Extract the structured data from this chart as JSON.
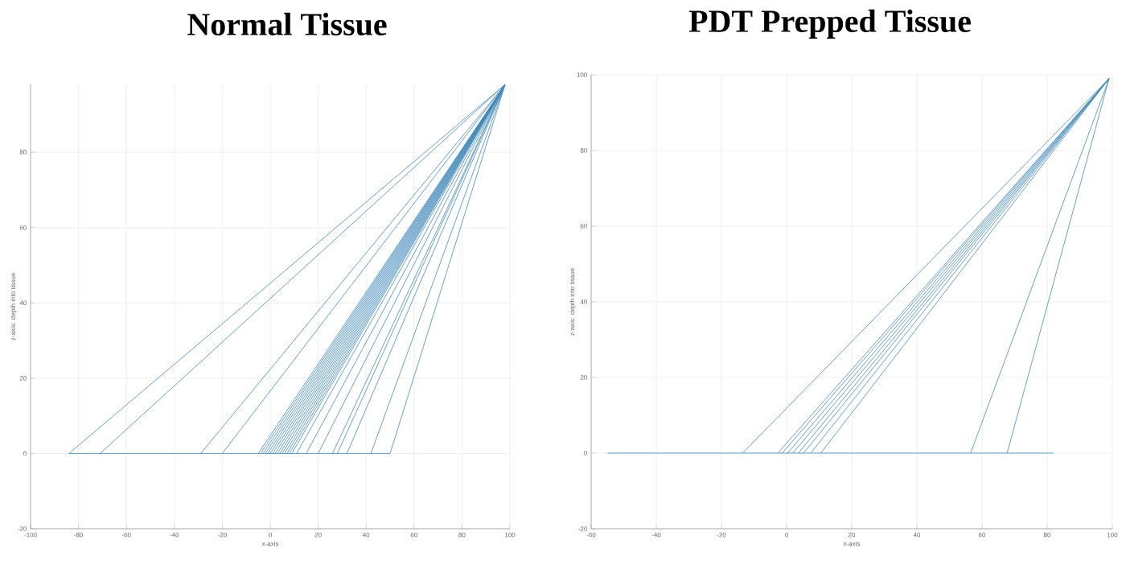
{
  "chart_data": [
    {
      "type": "line",
      "title": "Normal Tissue",
      "xlabel": "x-axis",
      "ylabel": "z-axis: depth into tissue",
      "color": "#3f88ba",
      "grid": true,
      "series": [
        {
          "x": [
            -84,
            50
          ],
          "values": [
            0,
            0
          ]
        },
        {
          "x": [
            -84,
            98
          ],
          "values": [
            0,
            98
          ]
        },
        {
          "x": [
            -71,
            98
          ],
          "values": [
            0,
            98
          ]
        },
        {
          "x": [
            -29,
            98
          ],
          "values": [
            0,
            98
          ]
        },
        {
          "x": [
            -20,
            98
          ],
          "values": [
            0,
            98
          ]
        },
        {
          "x": [
            -5,
            98
          ],
          "values": [
            0,
            98
          ]
        },
        {
          "x": [
            -4,
            98
          ],
          "values": [
            0,
            98
          ]
        },
        {
          "x": [
            -3,
            98
          ],
          "values": [
            0,
            98
          ]
        },
        {
          "x": [
            -2,
            98
          ],
          "values": [
            0,
            98
          ]
        },
        {
          "x": [
            -1,
            98
          ],
          "values": [
            0,
            98
          ]
        },
        {
          "x": [
            0,
            98
          ],
          "values": [
            0,
            98
          ]
        },
        {
          "x": [
            1,
            98
          ],
          "values": [
            0,
            98
          ]
        },
        {
          "x": [
            2,
            98
          ],
          "values": [
            0,
            98
          ]
        },
        {
          "x": [
            3,
            98
          ],
          "values": [
            0,
            98
          ]
        },
        {
          "x": [
            4,
            98
          ],
          "values": [
            0,
            98
          ]
        },
        {
          "x": [
            5,
            98
          ],
          "values": [
            0,
            98
          ]
        },
        {
          "x": [
            6,
            98
          ],
          "values": [
            0,
            98
          ]
        },
        {
          "x": [
            7,
            98
          ],
          "values": [
            0,
            98
          ]
        },
        {
          "x": [
            8,
            98
          ],
          "values": [
            0,
            98
          ]
        },
        {
          "x": [
            9,
            98
          ],
          "values": [
            0,
            98
          ]
        },
        {
          "x": [
            11,
            98
          ],
          "values": [
            0,
            98
          ]
        },
        {
          "x": [
            15,
            98
          ],
          "values": [
            0,
            98
          ]
        },
        {
          "x": [
            20,
            98
          ],
          "values": [
            0,
            98
          ]
        },
        {
          "x": [
            26,
            98
          ],
          "values": [
            0,
            98
          ]
        },
        {
          "x": [
            28,
            98
          ],
          "values": [
            0,
            98
          ]
        },
        {
          "x": [
            32,
            98
          ],
          "values": [
            0,
            98
          ]
        },
        {
          "x": [
            42,
            98
          ],
          "values": [
            0,
            98
          ]
        },
        {
          "x": [
            50,
            98
          ],
          "values": [
            0,
            98
          ]
        }
      ],
      "xlim": [
        -100,
        100
      ],
      "ylim": [
        -20,
        98
      ],
      "xticks": [
        -100,
        -80,
        -60,
        -40,
        -20,
        0,
        20,
        40,
        60,
        80,
        100
      ],
      "yticks": [
        -20,
        0,
        20,
        40,
        60,
        80
      ]
    },
    {
      "type": "line",
      "title": "PDT Prepped Tissue",
      "xlabel": "x-axis",
      "ylabel": "z-axis: depth into tissue",
      "color": "#3f88ba",
      "grid": true,
      "series": [
        {
          "x": [
            -55,
            82
          ],
          "values": [
            0,
            0
          ]
        },
        {
          "x": [
            -13.5,
            99
          ],
          "values": [
            0,
            99
          ]
        },
        {
          "x": [
            -2.7,
            99
          ],
          "values": [
            0,
            99
          ]
        },
        {
          "x": [
            -1.4,
            99
          ],
          "values": [
            0,
            99
          ]
        },
        {
          "x": [
            0.3,
            99
          ],
          "values": [
            0,
            99
          ]
        },
        {
          "x": [
            1.9,
            99
          ],
          "values": [
            0,
            99
          ]
        },
        {
          "x": [
            3.6,
            99
          ],
          "values": [
            0,
            99
          ]
        },
        {
          "x": [
            5.2,
            99
          ],
          "values": [
            0,
            99
          ]
        },
        {
          "x": [
            7.4,
            99
          ],
          "values": [
            0,
            99
          ]
        },
        {
          "x": [
            10.5,
            99
          ],
          "values": [
            0,
            99
          ]
        },
        {
          "x": [
            56.5,
            99
          ],
          "values": [
            0,
            99
          ]
        },
        {
          "x": [
            67.7,
            99
          ],
          "values": [
            0,
            99
          ]
        }
      ],
      "xlim": [
        -60,
        100
      ],
      "ylim": [
        -20,
        100
      ],
      "xticks": [
        -60,
        -40,
        -20,
        0,
        20,
        40,
        60,
        80,
        100
      ],
      "yticks": [
        -20,
        0,
        20,
        40,
        60,
        80,
        100
      ]
    }
  ]
}
